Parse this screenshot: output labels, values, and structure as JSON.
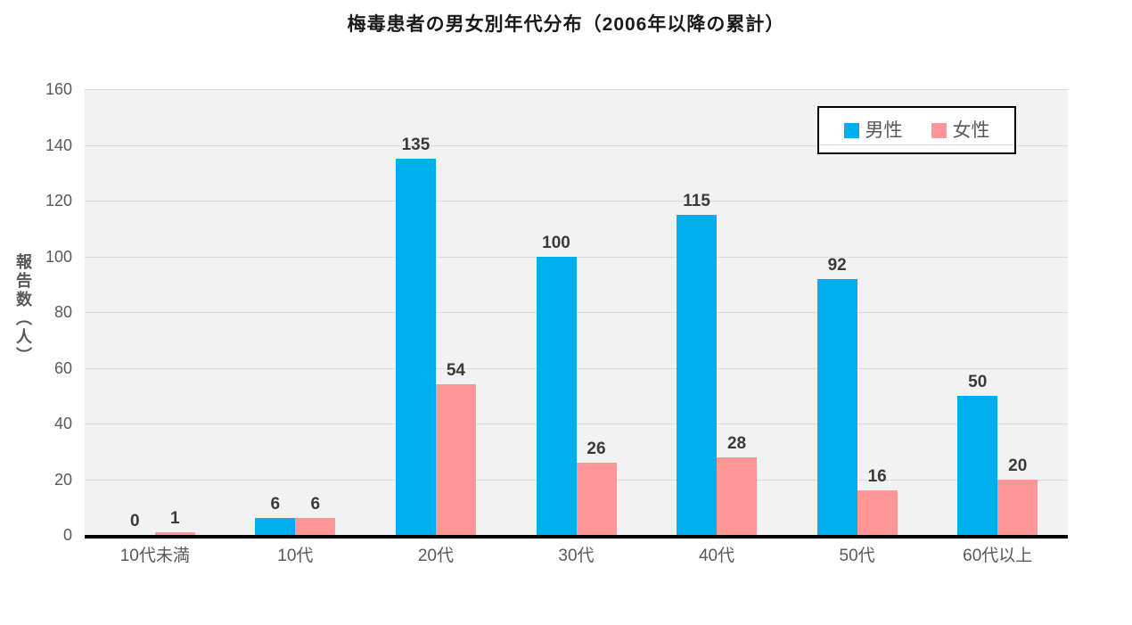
{
  "chart_data": {
    "type": "bar",
    "title": "梅毒患者の男女別年代分布（2006年以降の累計）",
    "ylabel": "報告数（人）",
    "xlabel": "",
    "categories": [
      "10代未満",
      "10代",
      "20代",
      "30代",
      "40代",
      "50代",
      "60代以上"
    ],
    "series": [
      {
        "name": "男性",
        "color": "#00AEEF",
        "values": [
          0,
          6,
          135,
          100,
          115,
          92,
          50
        ]
      },
      {
        "name": "女性",
        "color": "#FF9799",
        "values": [
          1,
          6,
          54,
          26,
          28,
          16,
          20
        ]
      }
    ],
    "ylim": [
      0,
      160
    ],
    "yticks": [
      0,
      20,
      40,
      60,
      80,
      100,
      120,
      140,
      160
    ],
    "grid": true,
    "legend_position": "top-right",
    "colors": {
      "plot_bg": "#F2F2F2",
      "gridline": "#DBDBDB",
      "axis_line": "#000000",
      "tick_label": "#595959",
      "data_label": "#3A3A3A",
      "legend_border": "#000000",
      "legend_bg": "#FFFFFF"
    }
  }
}
